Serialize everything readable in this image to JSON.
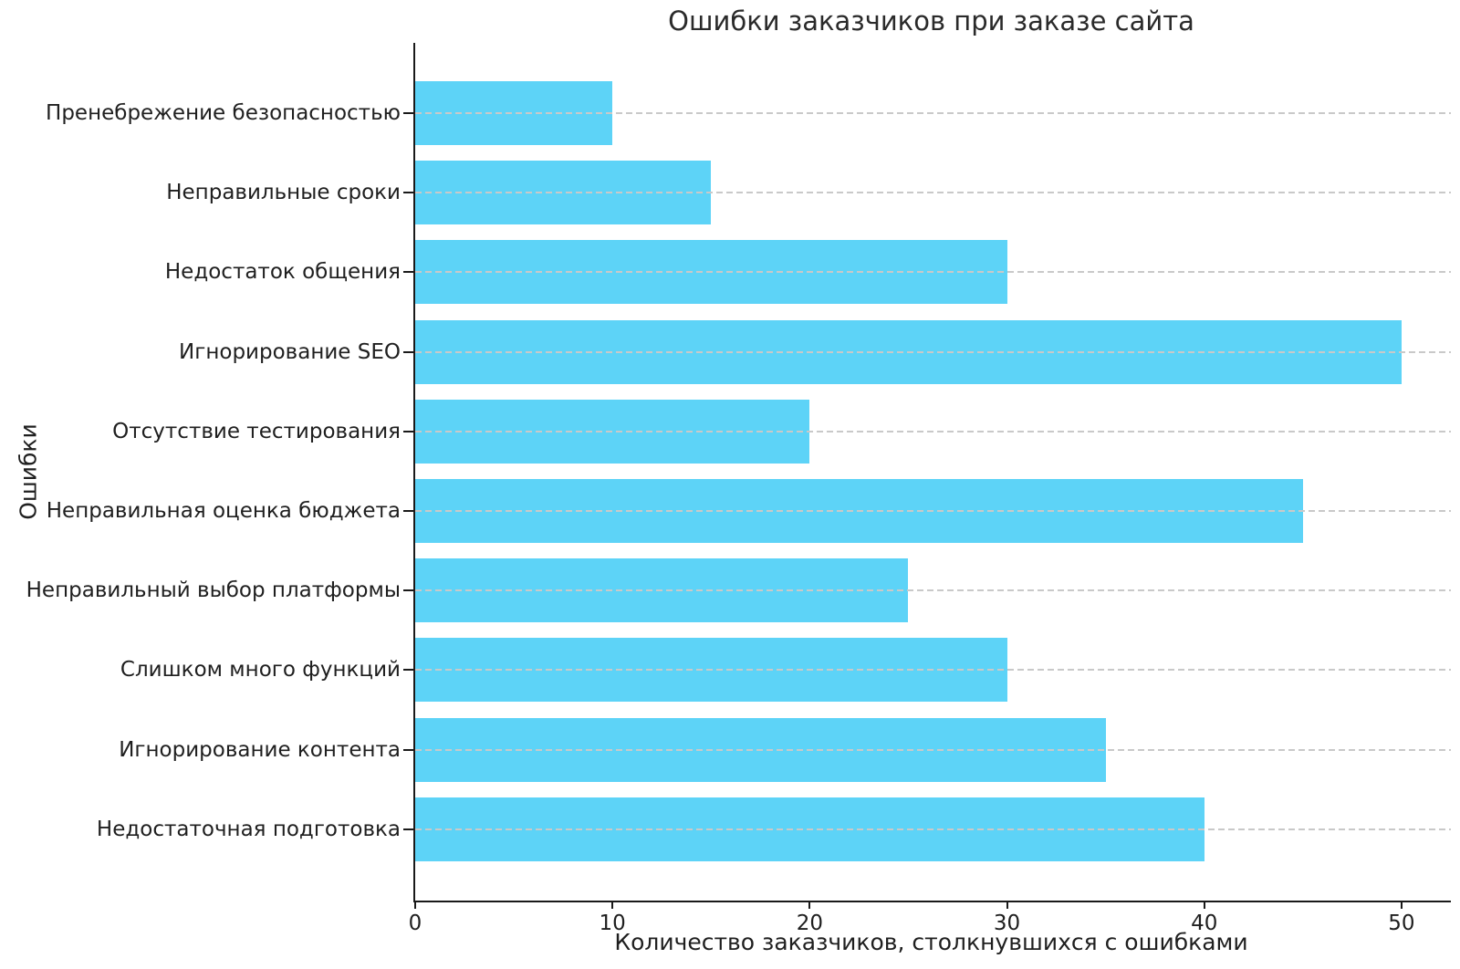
{
  "chart_data": {
    "type": "bar",
    "orientation": "horizontal",
    "title": "Ошибки заказчиков при заказе сайта",
    "xlabel": "Количество заказчиков, столкнувшихся с ошибками",
    "ylabel": "Ошибки",
    "categories": [
      "Пренебрежение безопасностью",
      "Неправильные сроки",
      "Недостаток общения",
      "Игнорирование SEO",
      "Отсутствие тестирования",
      "Неправильная оценка бюджета",
      "Неправильный выбор платформы",
      "Слишком много функций",
      "Игнорирование контента",
      "Недостаточная подготовка"
    ],
    "values": [
      10,
      15,
      30,
      50,
      20,
      45,
      25,
      30,
      35,
      40
    ],
    "x_ticks": [
      0,
      10,
      20,
      30,
      40,
      50
    ],
    "xlim": [
      0,
      52.5
    ],
    "bar_color": "#5dd3f7",
    "grid": "horizontal-dashed",
    "grid_color": "#c9c9c9",
    "axis_color": "#1a1a1a",
    "legend": "none"
  }
}
